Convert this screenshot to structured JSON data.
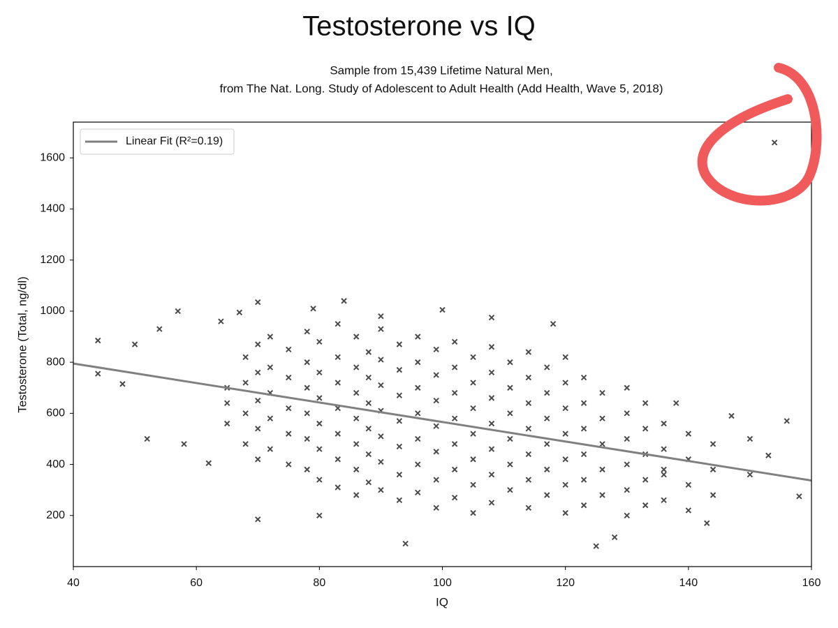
{
  "chart_data": {
    "type": "scatter",
    "title": "Testosterone vs IQ",
    "subtitle": [
      "Sample from 15,439 Lifetime Natural Men,",
      "from The Nat. Long. Study of Adolescent to Adult Health (Add Health, Wave 5, 2018)"
    ],
    "x_label": "IQ",
    "y_label": "Testosterone (Total, ng/dl)",
    "xlim": [
      40,
      160
    ],
    "ylim": [
      0,
      1740
    ],
    "xticks": [
      40,
      60,
      80,
      100,
      120,
      140,
      160
    ],
    "yticks": [
      200,
      400,
      600,
      800,
      1000,
      1200,
      1400,
      1600
    ],
    "legend": "upper left",
    "series": [
      {
        "color": "#2a2a2a",
        "marker": "x",
        "x": [
          44,
          44,
          48,
          50,
          52,
          54,
          57,
          58,
          62,
          64,
          67,
          70,
          70,
          79,
          80,
          84,
          90,
          94,
          100,
          108,
          118,
          125,
          128,
          136,
          138,
          143,
          147,
          150,
          153,
          154,
          156,
          158,
          150,
          65,
          65,
          65,
          68,
          68,
          68,
          68,
          70,
          70,
          70,
          70,
          70,
          72,
          72,
          72,
          72,
          72,
          75,
          75,
          75,
          75,
          75,
          78,
          78,
          78,
          78,
          78,
          78,
          80,
          80,
          80,
          80,
          80,
          80,
          83,
          83,
          83,
          83,
          83,
          83,
          83,
          86,
          86,
          86,
          86,
          86,
          86,
          86,
          88,
          88,
          88,
          88,
          88,
          88,
          90,
          90,
          90,
          90,
          90,
          90,
          90,
          93,
          93,
          93,
          93,
          93,
          93,
          93,
          96,
          96,
          96,
          96,
          96,
          96,
          96,
          99,
          99,
          99,
          99,
          99,
          99,
          99,
          102,
          102,
          102,
          102,
          102,
          102,
          102,
          105,
          105,
          105,
          105,
          105,
          105,
          105,
          108,
          108,
          108,
          108,
          108,
          108,
          108,
          111,
          111,
          111,
          111,
          111,
          111,
          114,
          114,
          114,
          114,
          114,
          114,
          114,
          117,
          117,
          117,
          117,
          117,
          117,
          120,
          120,
          120,
          120,
          120,
          120,
          120,
          123,
          123,
          123,
          123,
          123,
          123,
          126,
          126,
          126,
          126,
          126,
          130,
          130,
          130,
          130,
          130,
          130,
          133,
          133,
          133,
          133,
          133,
          136,
          136,
          136,
          136,
          140,
          140,
          140,
          140,
          144,
          144,
          144
        ],
        "values": [
          885,
          755,
          715,
          870,
          500,
          930,
          1000,
          480,
          405,
          960,
          995,
          1035,
          185,
          1010,
          200,
          1040,
          980,
          90,
          1005,
          975,
          950,
          80,
          115,
          380,
          640,
          170,
          590,
          500,
          435,
          1660,
          570,
          275,
          360,
          700,
          640,
          560,
          820,
          720,
          600,
          480,
          870,
          760,
          650,
          540,
          420,
          900,
          780,
          680,
          580,
          460,
          850,
          740,
          620,
          520,
          400,
          920,
          800,
          700,
          600,
          500,
          380,
          880,
          760,
          660,
          560,
          460,
          340,
          950,
          820,
          720,
          620,
          520,
          420,
          310,
          900,
          780,
          680,
          580,
          480,
          380,
          280,
          840,
          740,
          640,
          540,
          440,
          330,
          930,
          810,
          710,
          610,
          510,
          410,
          300,
          870,
          770,
          670,
          570,
          470,
          360,
          260,
          900,
          800,
          700,
          600,
          500,
          400,
          290,
          850,
          750,
          650,
          550,
          450,
          340,
          230,
          880,
          780,
          680,
          580,
          480,
          380,
          270,
          820,
          720,
          620,
          520,
          420,
          320,
          210,
          860,
          760,
          660,
          560,
          460,
          360,
          250,
          800,
          700,
          600,
          500,
          400,
          300,
          840,
          740,
          640,
          540,
          440,
          340,
          230,
          780,
          680,
          580,
          480,
          380,
          280,
          820,
          720,
          620,
          520,
          420,
          320,
          210,
          740,
          640,
          540,
          440,
          340,
          240,
          680,
          580,
          480,
          380,
          280,
          700,
          600,
          500,
          400,
          300,
          200,
          640,
          540,
          440,
          340,
          240,
          560,
          460,
          360,
          260,
          520,
          420,
          320,
          220,
          480,
          380,
          280
        ]
      },
      {
        "name": "Linear Fit (R²=0.19)",
        "type": "line",
        "color": "#808080",
        "x": [
          40,
          160
        ],
        "values": [
          795,
          337
        ]
      }
    ]
  }
}
